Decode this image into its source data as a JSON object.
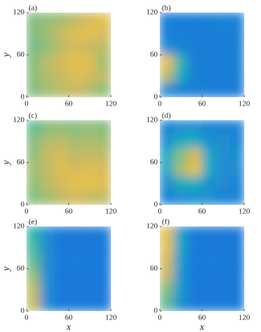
{
  "chart_data": [
    {
      "type": "heatmap",
      "panel_label": "(a)",
      "ylabel": "y",
      "xlim": [
        0,
        120
      ],
      "ylim": [
        0,
        120
      ],
      "xticks": [
        0,
        60,
        120
      ],
      "yticks": [
        0,
        60,
        120
      ],
      "colormap": [
        "#352a87",
        "#0d64e1",
        "#1289d4",
        "#06a7c6",
        "#38b99e",
        "#92bf73",
        "#d9ba56",
        "#fcce2e",
        "#f9fb0e"
      ],
      "z": [
        [
          0.6,
          0.62,
          0.65,
          0.7,
          0.75,
          0.8
        ],
        [
          0.6,
          0.65,
          0.72,
          0.78,
          0.8,
          0.75
        ],
        [
          0.58,
          0.62,
          0.7,
          0.75,
          0.72,
          0.7
        ],
        [
          0.6,
          0.7,
          0.75,
          0.8,
          0.78,
          0.65
        ],
        [
          0.62,
          0.68,
          0.72,
          0.78,
          0.75,
          0.7
        ],
        [
          0.6,
          0.65,
          0.7,
          0.72,
          0.68,
          0.62
        ]
      ]
    },
    {
      "type": "heatmap",
      "panel_label": "(b)",
      "xlim": [
        0,
        120
      ],
      "ylim": [
        0,
        120
      ],
      "xticks": [
        0,
        60,
        120
      ],
      "yticks": [
        0,
        60,
        120
      ],
      "colormap": [
        "#352a87",
        "#0d64e1",
        "#1289d4",
        "#06a7c6",
        "#38b99e",
        "#92bf73",
        "#d9ba56",
        "#fcce2e",
        "#f9fb0e"
      ],
      "z": [
        [
          0.2,
          0.2,
          0.2,
          0.2,
          0.22,
          0.2
        ],
        [
          0.2,
          0.2,
          0.2,
          0.2,
          0.2,
          0.2
        ],
        [
          0.25,
          0.22,
          0.2,
          0.2,
          0.2,
          0.2
        ],
        [
          0.8,
          0.45,
          0.2,
          0.2,
          0.2,
          0.2
        ],
        [
          0.7,
          0.4,
          0.2,
          0.2,
          0.2,
          0.2
        ],
        [
          0.25,
          0.22,
          0.2,
          0.2,
          0.2,
          0.2
        ]
      ]
    },
    {
      "type": "heatmap",
      "panel_label": "(c)",
      "ylabel": "y",
      "xlim": [
        0,
        120
      ],
      "ylim": [
        0,
        120
      ],
      "xticks": [
        0,
        60,
        120
      ],
      "yticks": [
        0,
        60,
        120
      ],
      "colormap": [
        "#352a87",
        "#0d64e1",
        "#1289d4",
        "#06a7c6",
        "#38b99e",
        "#92bf73",
        "#d9ba56",
        "#fcce2e",
        "#f9fb0e"
      ],
      "z": [
        [
          0.55,
          0.6,
          0.62,
          0.6,
          0.62,
          0.6
        ],
        [
          0.6,
          0.68,
          0.7,
          0.65,
          0.68,
          0.65
        ],
        [
          0.62,
          0.72,
          0.75,
          0.7,
          0.72,
          0.7
        ],
        [
          0.65,
          0.7,
          0.78,
          0.75,
          0.78,
          0.75
        ],
        [
          0.62,
          0.7,
          0.75,
          0.8,
          0.8,
          0.78
        ],
        [
          0.6,
          0.65,
          0.7,
          0.75,
          0.72,
          0.7
        ]
      ]
    },
    {
      "type": "heatmap",
      "panel_label": "(d)",
      "xlim": [
        0,
        120
      ],
      "ylim": [
        0,
        120
      ],
      "xticks": [
        0,
        60,
        120
      ],
      "yticks": [
        0,
        60,
        120
      ],
      "colormap": [
        "#352a87",
        "#0d64e1",
        "#1289d4",
        "#06a7c6",
        "#38b99e",
        "#92bf73",
        "#d9ba56",
        "#fcce2e",
        "#f9fb0e"
      ],
      "z": [
        [
          0.22,
          0.25,
          0.25,
          0.22,
          0.22,
          0.22
        ],
        [
          0.25,
          0.4,
          0.4,
          0.28,
          0.25,
          0.22
        ],
        [
          0.38,
          0.6,
          0.75,
          0.38,
          0.25,
          0.28
        ],
        [
          0.38,
          0.65,
          0.8,
          0.38,
          0.25,
          0.25
        ],
        [
          0.25,
          0.4,
          0.4,
          0.28,
          0.25,
          0.22
        ],
        [
          0.22,
          0.25,
          0.28,
          0.25,
          0.22,
          0.22
        ]
      ]
    },
    {
      "type": "heatmap",
      "panel_label": "(e)",
      "xlabel": "x",
      "ylabel": "y",
      "xlim": [
        0,
        120
      ],
      "ylim": [
        0,
        120
      ],
      "xticks": [
        0,
        60,
        120
      ],
      "yticks": [
        0,
        60,
        120
      ],
      "colormap": [
        "#352a87",
        "#0d64e1",
        "#1289d4",
        "#06a7c6",
        "#38b99e",
        "#92bf73",
        "#d9ba56",
        "#fcce2e",
        "#f9fb0e"
      ],
      "z": [
        [
          0.45,
          0.25,
          0.18,
          0.18,
          0.18,
          0.2
        ],
        [
          0.5,
          0.25,
          0.18,
          0.18,
          0.18,
          0.18
        ],
        [
          0.55,
          0.25,
          0.18,
          0.2,
          0.18,
          0.18
        ],
        [
          0.62,
          0.25,
          0.18,
          0.18,
          0.18,
          0.18
        ],
        [
          0.7,
          0.25,
          0.18,
          0.18,
          0.18,
          0.18
        ],
        [
          0.72,
          0.25,
          0.18,
          0.18,
          0.18,
          0.18
        ]
      ]
    },
    {
      "type": "heatmap",
      "panel_label": "(f)",
      "xlabel": "x",
      "xlim": [
        0,
        120
      ],
      "ylim": [
        0,
        120
      ],
      "xticks": [
        0,
        60,
        120
      ],
      "yticks": [
        0,
        60,
        120
      ],
      "colormap": [
        "#352a87",
        "#0d64e1",
        "#1289d4",
        "#06a7c6",
        "#38b99e",
        "#92bf73",
        "#d9ba56",
        "#fcce2e",
        "#f9fb0e"
      ],
      "z": [
        [
          0.8,
          0.35,
          0.18,
          0.18,
          0.18,
          0.18
        ],
        [
          0.8,
          0.35,
          0.18,
          0.18,
          0.18,
          0.18
        ],
        [
          0.75,
          0.32,
          0.18,
          0.2,
          0.18,
          0.18
        ],
        [
          0.72,
          0.3,
          0.18,
          0.18,
          0.18,
          0.18
        ],
        [
          0.6,
          0.3,
          0.18,
          0.18,
          0.18,
          0.18
        ],
        [
          0.55,
          0.28,
          0.18,
          0.18,
          0.18,
          0.18
        ]
      ]
    }
  ]
}
